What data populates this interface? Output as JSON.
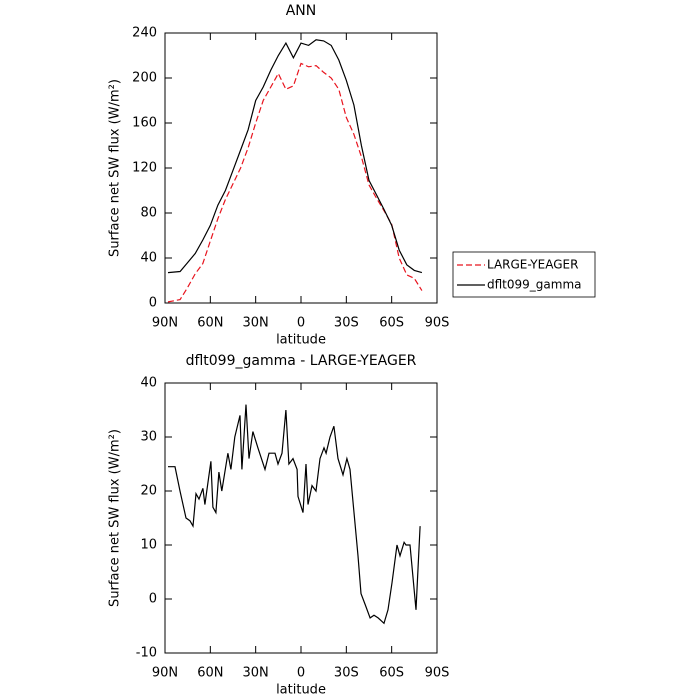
{
  "chart_data": [
    {
      "type": "line",
      "title": "ANN",
      "x_label": "latitude",
      "y_label": "Surface net SW flux (W/m²)",
      "x": [
        -88,
        -80,
        -75,
        -70,
        -65,
        -60,
        -55,
        -50,
        -45,
        -40,
        -35,
        -30,
        -25,
        -20,
        -15,
        -10,
        -5,
        0,
        5,
        10,
        15,
        20,
        25,
        30,
        35,
        40,
        45,
        50,
        55,
        60,
        65,
        70,
        75,
        80
      ],
      "series": [
        {
          "name": "LARGE-YEAGER",
          "color": "#e8141e",
          "dash": true,
          "values": [
            1,
            3,
            14,
            26,
            35,
            55,
            75,
            92,
            106,
            120,
            138,
            160,
            180,
            192,
            204,
            190,
            193,
            213,
            210,
            211,
            205,
            200,
            190,
            165,
            150,
            130,
            105,
            93,
            82,
            70,
            40,
            25,
            22,
            11
          ]
        },
        {
          "name": "dflt099_gamma",
          "color": "#000000",
          "dash": false,
          "values": [
            27,
            28,
            36,
            44,
            56,
            69,
            87,
            100,
            118,
            136,
            154,
            180,
            192,
            207,
            220,
            231,
            218,
            231,
            229,
            234,
            233,
            229,
            216,
            198,
            176,
            140,
            109,
            96,
            83,
            69,
            47,
            34,
            29,
            27
          ]
        }
      ],
      "xlim": [
        -90,
        90
      ],
      "xticks": [
        {
          "value": -90,
          "label": "90N"
        },
        {
          "value": -60,
          "label": "60N"
        },
        {
          "value": -30,
          "label": "30N"
        },
        0,
        {
          "value": 30,
          "label": "30S"
        },
        {
          "value": 60,
          "label": "60S"
        },
        {
          "value": 90,
          "label": "90S"
        }
      ],
      "ylim": [
        0,
        240
      ],
      "yticks": [
        0,
        40,
        80,
        120,
        160,
        200,
        240
      ],
      "legend": "right"
    },
    {
      "type": "line",
      "title": "dflt099_gamma - LARGE-YEAGER",
      "x_label": "latitude",
      "y_label": "Surface net SW flux (W/m²)",
      "x": [
        -88,
        -83.4,
        -80.1,
        -76.1,
        -73.5,
        -71.5,
        -69.5,
        -67.5,
        -64.9,
        -63.6,
        -59.6,
        -58.3,
        -56.3,
        -54.3,
        -52.4,
        -48.4,
        -46.4,
        -43.8,
        -40.4,
        -39.1,
        -36.4,
        -34.4,
        -31.8,
        -28.5,
        -23.8,
        -21.2,
        -17.2,
        -15.2,
        -12.6,
        -10,
        -8,
        -5.3,
        -2.6,
        -2,
        1.3,
        3.3,
        4.6,
        7.3,
        9.9,
        12.6,
        15.2,
        16.6,
        19.2,
        21.8,
        24.5,
        27.8,
        30.4,
        32.4,
        35.1,
        37.7,
        39.7,
        42.4,
        45.7,
        48.3,
        51,
        54.9,
        57.6,
        60.2,
        63.5,
        65.5,
        68.2,
        69.5,
        72.1,
        76.1,
        78.8
      ],
      "values": [
        24.5,
        24.5,
        20,
        15,
        14.5,
        13.5,
        19.5,
        18.5,
        20.5,
        17.5,
        25.5,
        17,
        16,
        23.5,
        20,
        27,
        24,
        30,
        34,
        24,
        36,
        26,
        31,
        28,
        24,
        27,
        27,
        25,
        27,
        35,
        25,
        26,
        24,
        19,
        16,
        25,
        17.5,
        21,
        20,
        26,
        28,
        27,
        30,
        32,
        26,
        23,
        26,
        24,
        16,
        8,
        1,
        -1,
        -3.5,
        -3,
        -3.5,
        -4.5,
        -2,
        3,
        10,
        8,
        10.5,
        10,
        10,
        -2,
        13.5
      ],
      "color": "#000000",
      "xlim": [
        -90,
        90
      ],
      "xticks": [
        {
          "value": -90,
          "label": "90N"
        },
        {
          "value": -60,
          "label": "60N"
        },
        {
          "value": -30,
          "label": "30N"
        },
        0,
        {
          "value": 30,
          "label": "30S"
        },
        {
          "value": 60,
          "label": "60S"
        },
        {
          "value": 90,
          "label": "90S"
        }
      ],
      "ylim": [
        -10,
        40
      ],
      "yticks": [
        -10,
        0,
        10,
        20,
        30,
        40
      ]
    }
  ]
}
